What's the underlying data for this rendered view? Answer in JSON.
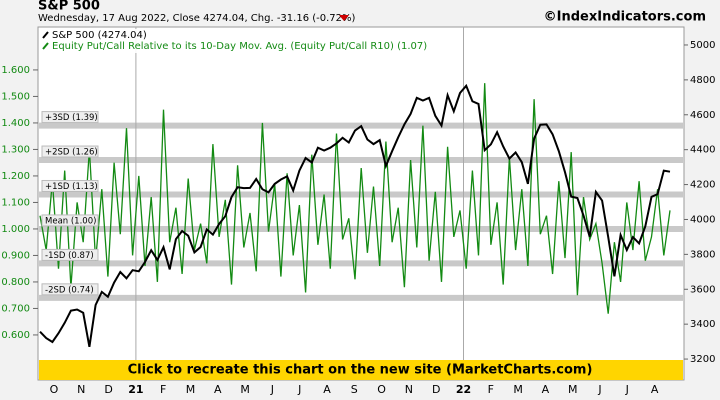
{
  "chart_data": {
    "type": "line",
    "title": "S&P 500",
    "subtitle": "Wednesday, 17 Aug 2022, Close 4274.04, Chg. -31.16 (-0.72%)",
    "watermark": "©IndexIndicators.com",
    "banner": "Click to recreate this chart on the new site (MarketCharts.com)",
    "xticks": [
      "O",
      "N",
      "D",
      "21",
      "F",
      "M",
      "A",
      "M",
      "J",
      "J",
      "A",
      "S",
      "O",
      "N",
      "D",
      "22",
      "F",
      "M",
      "A",
      "M",
      "J",
      "J",
      "A"
    ],
    "ylim": [
      0.43,
      1.762
    ],
    "yticks": [
      {
        "value": 0.6,
        "label": "0.600"
      },
      {
        "value": 0.7,
        "label": "0.700"
      },
      {
        "value": 0.8,
        "label": "0.800"
      },
      {
        "value": 0.9,
        "label": "0.900"
      },
      {
        "value": 1.0,
        "label": "1.000"
      },
      {
        "value": 1.1,
        "label": "1.100"
      },
      {
        "value": 1.2,
        "label": "1.200"
      },
      {
        "value": 1.3,
        "label": "1.300"
      },
      {
        "value": 1.4,
        "label": "1.400"
      },
      {
        "value": 1.5,
        "label": "1.500"
      },
      {
        "value": 1.6,
        "label": "1.600"
      }
    ],
    "y2lim": [
      3080,
      5103
    ],
    "y2ticks": [
      3200,
      3400,
      3600,
      3800,
      4000,
      4200,
      4400,
      4600,
      4800,
      5000
    ],
    "bands": [
      {
        "label": "+3SD (1.39)",
        "value": 1.39
      },
      {
        "label": "+2SD (1.26)",
        "value": 1.26
      },
      {
        "label": "+1SD (1.13)",
        "value": 1.13
      },
      {
        "label": "Mean (1.00)",
        "value": 1.0
      },
      {
        "label": "-1SD (0.87)",
        "value": 0.87
      },
      {
        "label": "-2SD (0.74)",
        "value": 0.74
      }
    ],
    "series": [
      {
        "name": "Equity Put/Call Relative to its 10-Day Mov. Avg. (Equity Put/Call R10) (1.07)",
        "color": "#138a13",
        "values": [
          1.05,
          0.92,
          1.18,
          0.85,
          1.22,
          0.78,
          1.1,
          0.95,
          1.3,
          0.88,
          1.15,
          0.82,
          1.25,
          0.98,
          1.38,
          0.9,
          1.2,
          0.86,
          1.12,
          0.8,
          1.45,
          0.95,
          1.08,
          0.83,
          1.19,
          0.92,
          1.02,
          0.87,
          1.32,
          0.97,
          1.11,
          0.79,
          1.24,
          0.93,
          1.06,
          0.84,
          1.4,
          0.99,
          1.17,
          0.82,
          1.21,
          0.9,
          1.09,
          0.76,
          1.28,
          0.94,
          1.13,
          0.85,
          1.36,
          0.96,
          1.04,
          0.81,
          1.23,
          0.91,
          1.16,
          0.86,
          1.33,
          0.95,
          1.08,
          0.78,
          1.26,
          0.93,
          1.39,
          0.88,
          1.14,
          0.8,
          1.31,
          0.97,
          1.07,
          0.85,
          1.22,
          0.9,
          1.55,
          0.94,
          1.1,
          0.79,
          1.27,
          0.92,
          1.15,
          0.86,
          1.49,
          0.98,
          1.05,
          0.83,
          1.18,
          0.89,
          1.29,
          0.75,
          1.12,
          0.96,
          1.02,
          0.87,
          0.68,
          0.95,
          0.8,
          1.1,
          0.92,
          1.18,
          0.88,
          0.97,
          1.15,
          0.9,
          1.07
        ]
      },
      {
        "name": "S&P 500 (4274.04)",
        "color": "#000000",
        "axis": "y2",
        "values": [
          3357,
          3320,
          3298,
          3348,
          3408,
          3477,
          3484,
          3465,
          3270,
          3510,
          3585,
          3557,
          3638,
          3699,
          3663,
          3709,
          3703,
          3756,
          3824,
          3768,
          3841,
          3714,
          3887,
          3934,
          3907,
          3811,
          3842,
          3943,
          3913,
          3974,
          4019,
          4128,
          4185,
          4180,
          4181,
          4232,
          4173,
          4155,
          4204,
          4229,
          4247,
          4166,
          4280,
          4352,
          4327,
          4411,
          4395,
          4411,
          4436,
          4468,
          4441,
          4509,
          4535,
          4458,
          4432,
          4455,
          4307,
          4391,
          4471,
          4545,
          4605,
          4697,
          4682,
          4697,
          4594,
          4538,
          4712,
          4620,
          4725,
          4766,
          4677,
          4662,
          4397,
          4431,
          4500,
          4418,
          4349,
          4384,
          4328,
          4204,
          4463,
          4543,
          4545,
          4488,
          4392,
          4271,
          4131,
          4123,
          4023,
          3901,
          4158,
          4108,
          3900,
          3674,
          3911,
          3825,
          3899,
          3863,
          3961,
          4130,
          4145,
          4280,
          4274
        ]
      }
    ]
  }
}
